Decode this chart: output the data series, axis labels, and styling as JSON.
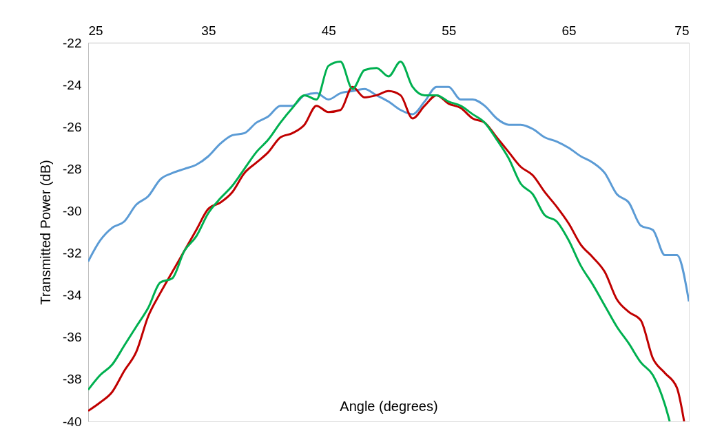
{
  "chart_data": {
    "type": "line",
    "xlabel": "Angle (degrees)",
    "ylabel": "Transmitted  Power (dB)",
    "xlim": [
      25,
      75
    ],
    "xticks": [
      25,
      35,
      45,
      55,
      65,
      75
    ],
    "ylim": [
      -40,
      -22
    ],
    "yticks": [
      -40,
      -38,
      -36,
      -34,
      -32,
      -30,
      -28,
      -26,
      -24,
      -22
    ],
    "grid": false,
    "marker": "none",
    "line_style": "solid",
    "series": [
      {
        "color": "#5b9bd5",
        "x": [
          25,
          26,
          27,
          28,
          29,
          30,
          31,
          32,
          33,
          34,
          35,
          36,
          37,
          38,
          39,
          40,
          41,
          42,
          43,
          44,
          45,
          46,
          47,
          48,
          49,
          50,
          51,
          52,
          53,
          54,
          55,
          56,
          57,
          58,
          59,
          60,
          61,
          62,
          63,
          64,
          65,
          66,
          67,
          68,
          69,
          70,
          71,
          72,
          73,
          74,
          75
        ],
        "values": [
          -32.4,
          -31.4,
          -30.8,
          -30.5,
          -29.7,
          -29.3,
          -28.5,
          -28.2,
          -28.0,
          -27.8,
          -27.4,
          -26.8,
          -26.4,
          -26.3,
          -25.8,
          -25.5,
          -25.0,
          -25.0,
          -24.5,
          -24.4,
          -24.7,
          -24.4,
          -24.3,
          -24.2,
          -24.5,
          -24.8,
          -25.2,
          -25.4,
          -24.8,
          -24.1,
          -24.1,
          -24.7,
          -24.7,
          -25.0,
          -25.6,
          -25.9,
          -25.9,
          -26.1,
          -26.5,
          -26.7,
          -27.0,
          -27.4,
          -27.7,
          -28.2,
          -29.2,
          -29.6,
          -30.7,
          -30.9,
          -32.1,
          -32.1,
          -34.3
        ]
      },
      {
        "color": "#c00000",
        "x": [
          25,
          26,
          27,
          28,
          29,
          30,
          31,
          32,
          33,
          34,
          35,
          36,
          37,
          38,
          39,
          40,
          41,
          42,
          43,
          44,
          45,
          46,
          47,
          48,
          49,
          50,
          51,
          52,
          53,
          54,
          55,
          56,
          57,
          58,
          59,
          60,
          61,
          62,
          63,
          64,
          65,
          66,
          67,
          68,
          69,
          70,
          71,
          72,
          73,
          74,
          74.6
        ],
        "values": [
          -39.5,
          -39.1,
          -38.6,
          -37.6,
          -36.7,
          -35.0,
          -33.9,
          -32.9,
          -31.9,
          -30.9,
          -29.9,
          -29.6,
          -29.1,
          -28.2,
          -27.7,
          -27.2,
          -26.5,
          -26.3,
          -25.9,
          -25.0,
          -25.3,
          -25.2,
          -24.1,
          -24.6,
          -24.5,
          -24.3,
          -24.5,
          -25.6,
          -25.0,
          -24.5,
          -24.9,
          -25.1,
          -25.6,
          -25.8,
          -26.5,
          -27.2,
          -27.9,
          -28.3,
          -29.1,
          -29.8,
          -30.6,
          -31.6,
          -32.2,
          -32.9,
          -34.2,
          -34.8,
          -35.2,
          -37.0,
          -37.7,
          -38.4,
          -40.0
        ]
      },
      {
        "color": "#00b050",
        "x": [
          25,
          26,
          27,
          28,
          29,
          30,
          31,
          32,
          33,
          34,
          35,
          36,
          37,
          38,
          39,
          40,
          41,
          42,
          43,
          44,
          45,
          46,
          47,
          48,
          49,
          50,
          51,
          52,
          53,
          54,
          55,
          56,
          57,
          58,
          59,
          60,
          61,
          62,
          63,
          64,
          65,
          66,
          67,
          68,
          69,
          70,
          71,
          72,
          73,
          73.4
        ],
        "values": [
          -38.5,
          -37.8,
          -37.3,
          -36.4,
          -35.5,
          -34.6,
          -33.4,
          -33.2,
          -31.9,
          -31.2,
          -30.1,
          -29.4,
          -28.8,
          -28.0,
          -27.2,
          -26.6,
          -25.8,
          -25.1,
          -24.5,
          -24.7,
          -23.1,
          -22.9,
          -24.2,
          -23.3,
          -23.2,
          -23.6,
          -22.9,
          -24.1,
          -24.5,
          -24.5,
          -24.8,
          -25.0,
          -25.4,
          -25.8,
          -26.6,
          -27.5,
          -28.7,
          -29.2,
          -30.2,
          -30.5,
          -31.4,
          -32.6,
          -33.5,
          -34.5,
          -35.5,
          -36.3,
          -37.2,
          -37.8,
          -39.2,
          -40.0
        ]
      }
    ]
  }
}
